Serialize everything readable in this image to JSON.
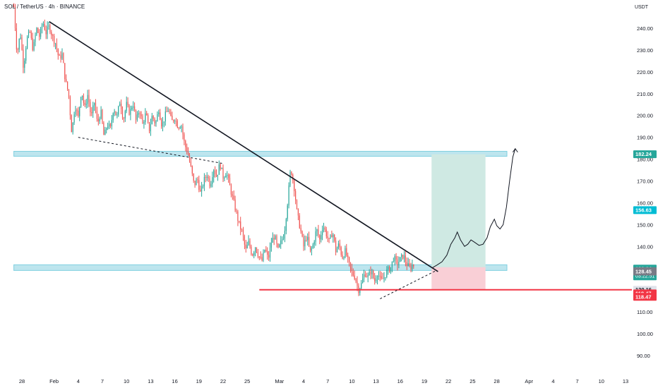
{
  "header": {
    "symbol": "SOL / TetherUS · 4h · BINANCE",
    "currency": "USDT"
  },
  "colors": {
    "up": "#26a69a",
    "down": "#ef5350",
    "zone": "#bde5ee",
    "zone_border": "#7fd0e0",
    "support_line": "#f23645",
    "target_fill": "#cfe9e3",
    "stop_fill": "#f9cfd6",
    "trendline": "#131722"
  },
  "chart_data": {
    "type": "candlestick",
    "y_axis": {
      "ylim": [
        84,
        251
      ],
      "ticks": [
        240,
        230,
        220,
        210,
        200,
        190,
        180,
        170,
        160,
        150,
        140,
        130,
        120,
        110,
        100,
        90
      ],
      "tick_labels": [
        "240.00",
        "230.00",
        "220.00",
        "210.00",
        "200.00",
        "190.00",
        "180.00",
        "170.00",
        "160.00",
        "150.00",
        "140.00",
        "130.00",
        "120.00",
        "110.00",
        "100.00",
        "90.00"
      ]
    },
    "x_axis": {
      "start_day": "Jan 27",
      "ticks": [
        {
          "day": 1,
          "label": "28"
        },
        {
          "day": 5,
          "label": "Feb"
        },
        {
          "day": 8,
          "label": "4"
        },
        {
          "day": 11,
          "label": "7"
        },
        {
          "day": 14,
          "label": "10"
        },
        {
          "day": 17,
          "label": "13"
        },
        {
          "day": 20,
          "label": "16"
        },
        {
          "day": 23,
          "label": "19"
        },
        {
          "day": 26,
          "label": "22"
        },
        {
          "day": 29,
          "label": "25"
        },
        {
          "day": 33,
          "label": "Mar"
        },
        {
          "day": 36,
          "label": "4"
        },
        {
          "day": 39,
          "label": "7"
        },
        {
          "day": 42,
          "label": "10"
        },
        {
          "day": 45,
          "label": "13"
        },
        {
          "day": 48,
          "label": "16"
        },
        {
          "day": 51,
          "label": "19"
        },
        {
          "day": 54,
          "label": "22"
        },
        {
          "day": 57,
          "label": "25"
        },
        {
          "day": 60,
          "label": "28"
        },
        {
          "day": 64,
          "label": "Apr"
        },
        {
          "day": 67,
          "label": "4"
        },
        {
          "day": 70,
          "label": "7"
        },
        {
          "day": 73,
          "label": "10"
        },
        {
          "day": 76,
          "label": "13"
        }
      ]
    },
    "price_path": [
      [
        0,
        250
      ],
      [
        0.4,
        228
      ],
      [
        0.8,
        238
      ],
      [
        1.2,
        222
      ],
      [
        1.6,
        235
      ],
      [
        2,
        238
      ],
      [
        2.4,
        230
      ],
      [
        2.8,
        240
      ],
      [
        3.2,
        236
      ],
      [
        3.6,
        243
      ],
      [
        4,
        238
      ],
      [
        4.4,
        241
      ],
      [
        4.8,
        236
      ],
      [
        5.2,
        233
      ],
      [
        5.6,
        226
      ],
      [
        6,
        228
      ],
      [
        6.4,
        216
      ],
      [
        6.8,
        210
      ],
      [
        7.2,
        192
      ],
      [
        7.6,
        205
      ],
      [
        8,
        199
      ],
      [
        8.4,
        212
      ],
      [
        8.8,
        203
      ],
      [
        9.2,
        210
      ],
      [
        9.6,
        199
      ],
      [
        10,
        206
      ],
      [
        10.4,
        196
      ],
      [
        10.8,
        202
      ],
      [
        11.2,
        190
      ],
      [
        11.6,
        196
      ],
      [
        12,
        194
      ],
      [
        12.4,
        204
      ],
      [
        12.8,
        199
      ],
      [
        13.2,
        207
      ],
      [
        13.6,
        198
      ],
      [
        14,
        205
      ],
      [
        14.4,
        201
      ],
      [
        14.8,
        206
      ],
      [
        15.2,
        197
      ],
      [
        15.6,
        203
      ],
      [
        16,
        196
      ],
      [
        16.4,
        201
      ],
      [
        16.8,
        193
      ],
      [
        17.2,
        200
      ],
      [
        17.6,
        196
      ],
      [
        18,
        203
      ],
      [
        18.4,
        195
      ],
      [
        18.8,
        200
      ],
      [
        19.2,
        203
      ],
      [
        19.6,
        197
      ],
      [
        20,
        199
      ],
      [
        20.4,
        195
      ],
      [
        20.8,
        196
      ],
      [
        21.2,
        187
      ],
      [
        21.6,
        183
      ],
      [
        22,
        176
      ],
      [
        22.4,
        168
      ],
      [
        22.8,
        171
      ],
      [
        23.2,
        164
      ],
      [
        23.6,
        170
      ],
      [
        24,
        173
      ],
      [
        24.4,
        168
      ],
      [
        24.8,
        176
      ],
      [
        25.2,
        172
      ],
      [
        25.6,
        178
      ],
      [
        26,
        172
      ],
      [
        26.4,
        174
      ],
      [
        26.8,
        168
      ],
      [
        27.2,
        162
      ],
      [
        27.6,
        156
      ],
      [
        28,
        150
      ],
      [
        28.4,
        146
      ],
      [
        28.8,
        138
      ],
      [
        29.2,
        142
      ],
      [
        29.6,
        136
      ],
      [
        30,
        140
      ],
      [
        30.4,
        136
      ],
      [
        30.8,
        133
      ],
      [
        31.2,
        139
      ],
      [
        31.6,
        134
      ],
      [
        32,
        142
      ],
      [
        32.4,
        145
      ],
      [
        32.8,
        138
      ],
      [
        33.2,
        142
      ],
      [
        33.6,
        146
      ],
      [
        34,
        160
      ],
      [
        34.4,
        176
      ],
      [
        34.8,
        168
      ],
      [
        35.2,
        155
      ],
      [
        35.6,
        148
      ],
      [
        36,
        140
      ],
      [
        36.4,
        145
      ],
      [
        36.8,
        137
      ],
      [
        37.2,
        141
      ],
      [
        37.6,
        148
      ],
      [
        38,
        143
      ],
      [
        38.4,
        150
      ],
      [
        38.8,
        146
      ],
      [
        39.2,
        142
      ],
      [
        39.6,
        147
      ],
      [
        40,
        138
      ],
      [
        40.4,
        141
      ],
      [
        40.8,
        135
      ],
      [
        41.2,
        138
      ],
      [
        41.6,
        132
      ],
      [
        42,
        128
      ],
      [
        42.4,
        126
      ],
      [
        42.8,
        120
      ],
      [
        43.2,
        123
      ],
      [
        43.6,
        128
      ],
      [
        44,
        126
      ],
      [
        44.4,
        129
      ],
      [
        44.8,
        124
      ],
      [
        45.2,
        128
      ],
      [
        45.6,
        124
      ],
      [
        46,
        126
      ],
      [
        46.4,
        129
      ],
      [
        46.8,
        130
      ],
      [
        47.2,
        135
      ],
      [
        47.6,
        132
      ],
      [
        48,
        134
      ],
      [
        48.4,
        136
      ],
      [
        48.8,
        132
      ],
      [
        49.2,
        130
      ],
      [
        49.6,
        132
      ],
      [
        49.8,
        129.84
      ]
    ],
    "current_price": 129.84,
    "countdown": "03:22:51",
    "price_labels": [
      {
        "value": 182.24,
        "label": "182.24",
        "style": "teal"
      },
      {
        "value": 156.63,
        "label": "156.63",
        "style": "blue"
      },
      {
        "value": 129.84,
        "label": "129.84",
        "style": "green"
      },
      {
        "value": 128.67,
        "label": "128.67",
        "style": "gray"
      },
      {
        "value": 128.45,
        "label": "128.45",
        "style": "gray"
      },
      {
        "value": 120.16,
        "label": "120.16",
        "style": "light"
      },
      {
        "value": 118.72,
        "label": "118.72",
        "style": "plain"
      },
      {
        "value": 118.47,
        "label": "118.47",
        "style": "red"
      },
      {
        "value": 116.9,
        "label": "118.47",
        "style": "red"
      }
    ],
    "zones": [
      {
        "name": "resistance-zone",
        "y_low": 181.3,
        "y_high": 183.6,
        "day_from": 0,
        "day_to": 65
      },
      {
        "name": "support-zone",
        "y_low": 129.0,
        "y_high": 131.6,
        "day_from": 0,
        "day_to": 65
      }
    ],
    "support_line": {
      "y": 120.16,
      "day_from": 30.5,
      "day_to": 80
    },
    "trendlines": [
      {
        "name": "main-downtrend",
        "style": "solid",
        "from": [
          4.4,
          243
        ],
        "to": [
          52.7,
          128.5
        ]
      },
      {
        "name": "lower-dashed",
        "style": "dashed",
        "from": [
          8,
          190
        ],
        "to": [
          26,
          178
        ]
      },
      {
        "name": "rising-dashed",
        "style": "dashed",
        "from": [
          45.5,
          116
        ],
        "to": [
          52.5,
          129
        ]
      }
    ],
    "long_position": {
      "day_from": 51.9,
      "day_to": 58.6,
      "entry": 130.5,
      "target": 182.24,
      "stop": 120.16
    },
    "projection_path": [
      [
        52,
        130.2
      ],
      [
        52.6,
        131.5
      ],
      [
        53.2,
        133
      ],
      [
        53.8,
        136
      ],
      [
        54.3,
        141
      ],
      [
        54.8,
        144
      ],
      [
        55.1,
        146.6
      ],
      [
        55.5,
        143
      ],
      [
        56,
        140
      ],
      [
        56.4,
        141
      ],
      [
        56.8,
        143
      ],
      [
        57.2,
        142
      ],
      [
        57.8,
        140.5
      ],
      [
        58.3,
        141
      ],
      [
        58.8,
        144
      ],
      [
        59.2,
        149
      ],
      [
        59.7,
        152.5
      ],
      [
        60,
        149.5
      ],
      [
        60.4,
        148
      ],
      [
        60.8,
        150
      ],
      [
        61.2,
        158
      ],
      [
        61.6,
        170
      ],
      [
        62,
        181
      ],
      [
        62.3,
        184.8
      ]
    ]
  }
}
